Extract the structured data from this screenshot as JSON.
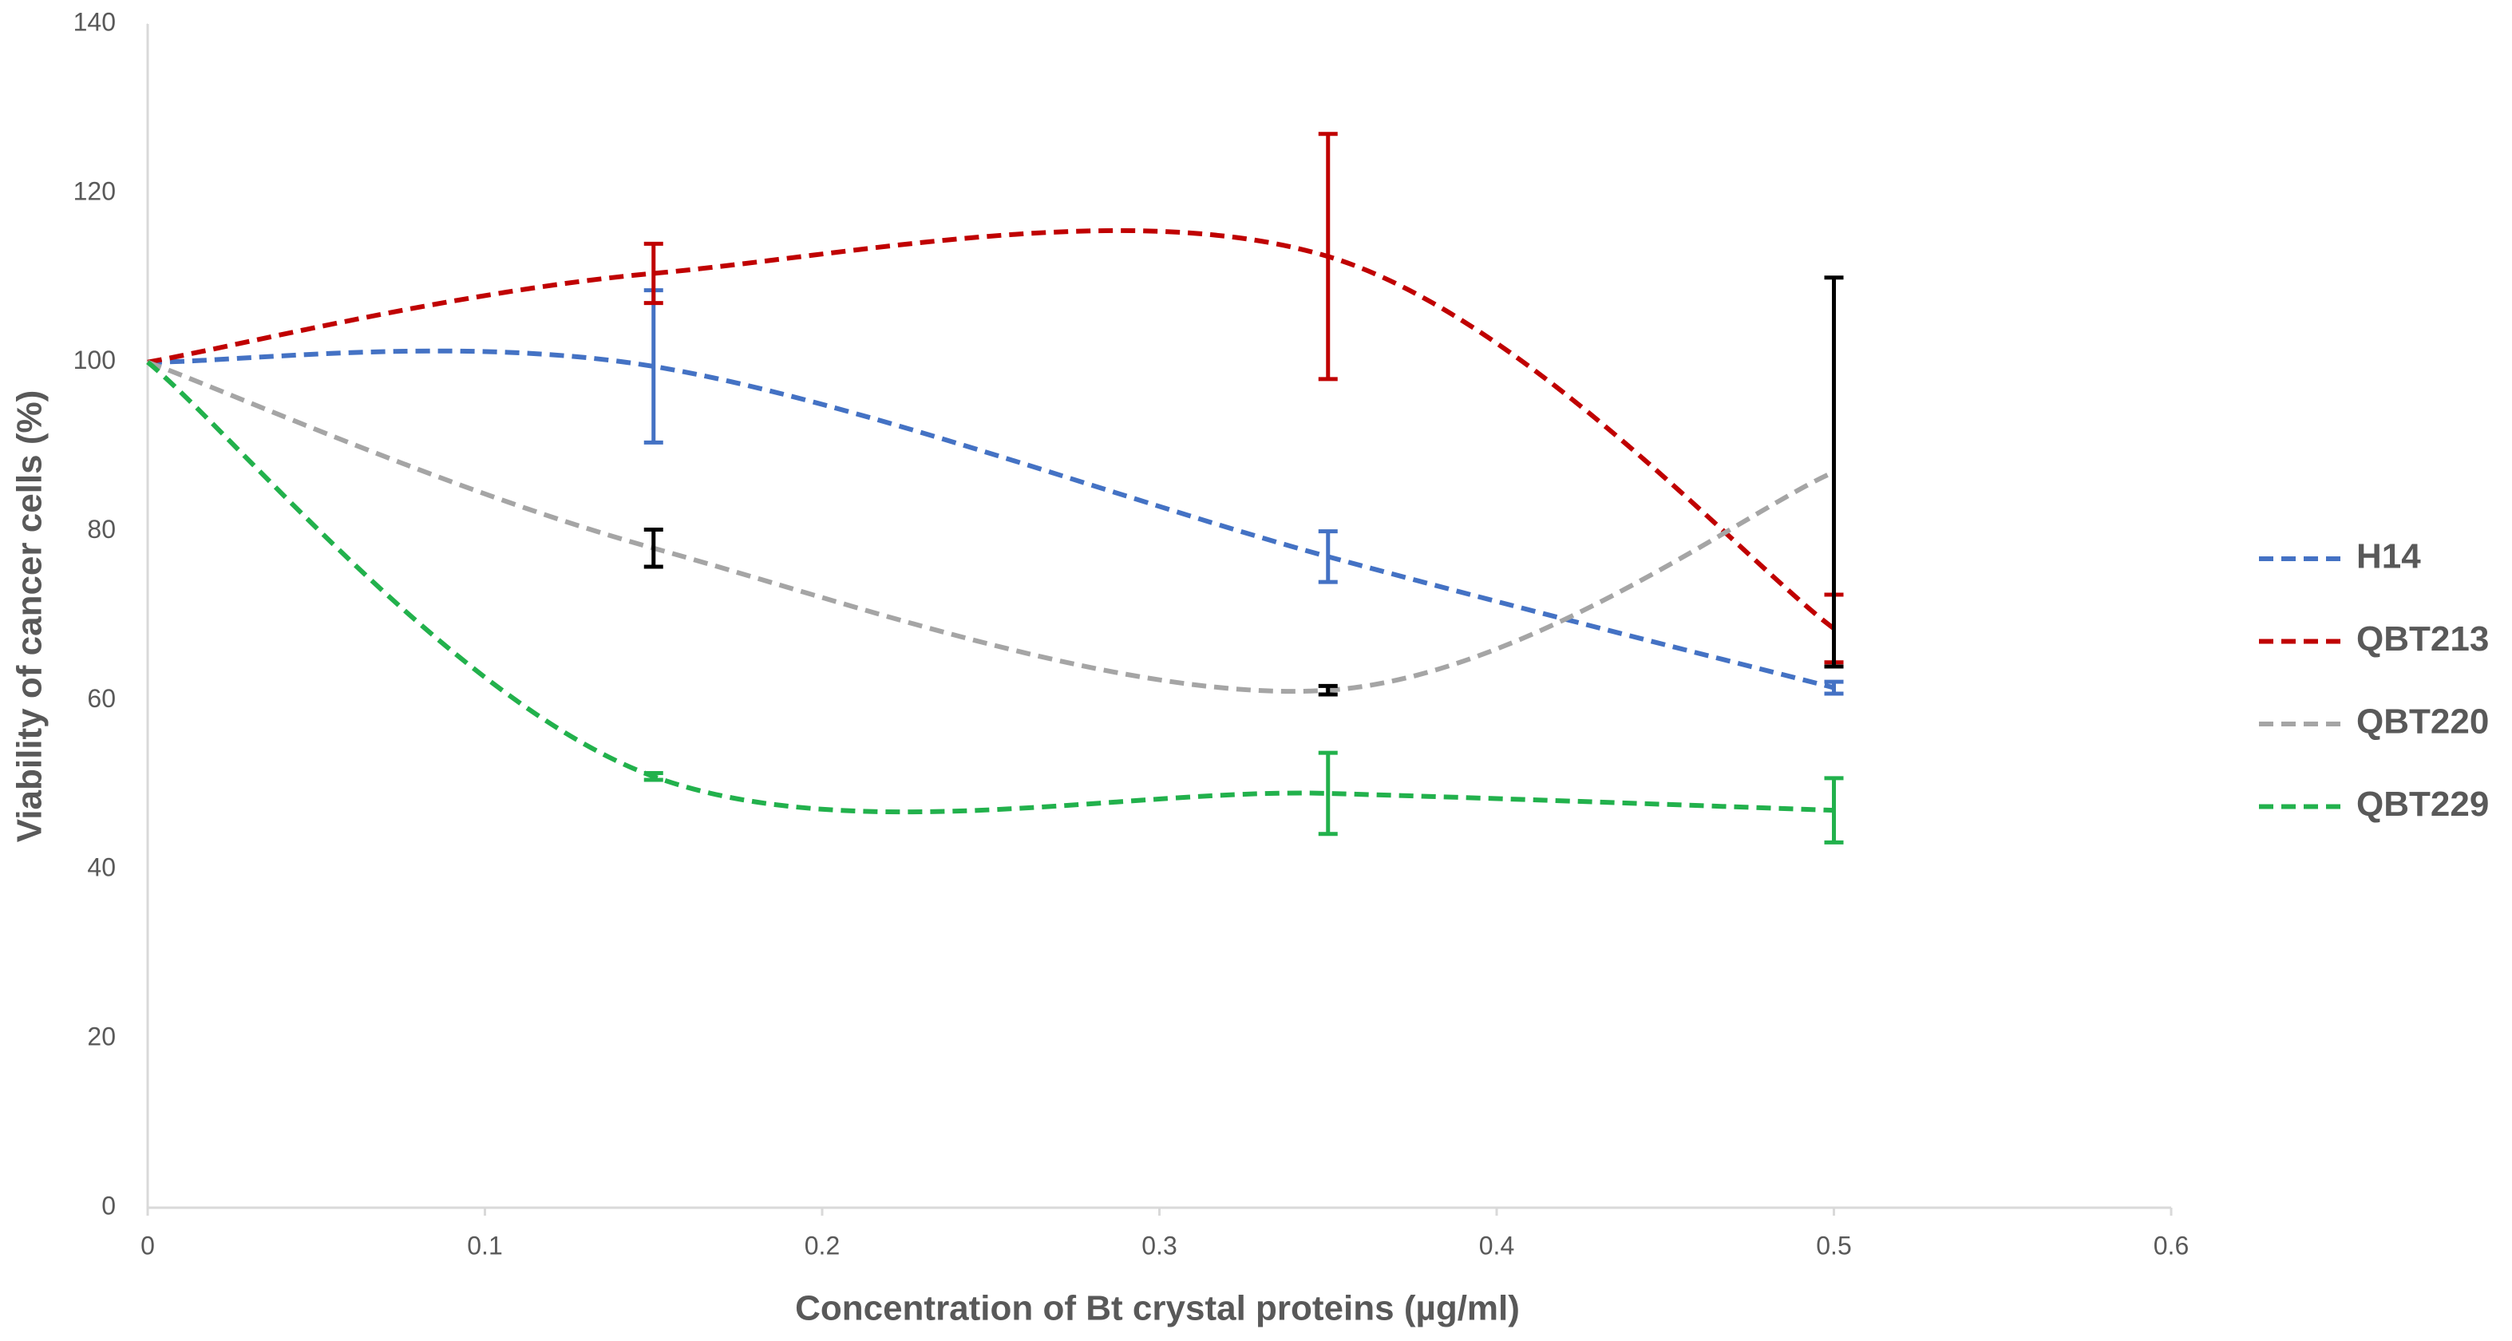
{
  "chart_data": {
    "type": "line",
    "xlabel": "Concentration of Bt crystal proteins (µg/ml)",
    "ylabel": "Viability of cancer cells (%)",
    "x": [
      0,
      0.15,
      0.35,
      0.5
    ],
    "series": [
      {
        "name": "H14",
        "color": "#4472c4",
        "error_color": "#4472c4",
        "values": [
          100,
          99.5,
          77,
          61.5
        ],
        "errors": [
          null,
          9,
          3,
          0.7
        ]
      },
      {
        "name": "QBT213",
        "color": "#c00000",
        "error_color": "#c00000",
        "values": [
          100,
          110.5,
          112.5,
          68.5
        ],
        "errors": [
          null,
          3.5,
          14.5,
          4
        ]
      },
      {
        "name": "QBT220",
        "color": "#a5a5a5",
        "error_color": "#000000",
        "values": [
          100,
          78,
          61.2,
          87
        ],
        "errors": [
          null,
          2.2,
          0.5,
          23
        ]
      },
      {
        "name": "QBT229",
        "color": "#22b14c",
        "error_color": "#22b14c",
        "values": [
          100,
          51,
          49,
          47
        ],
        "errors": [
          null,
          0.4,
          4.8,
          3.8
        ]
      }
    ],
    "xlim": [
      0,
      0.6
    ],
    "xticks": [
      0,
      0.1,
      0.2,
      0.3,
      0.4,
      0.5,
      0.6
    ],
    "ylim": [
      0,
      140
    ],
    "yticks": [
      0,
      20,
      40,
      60,
      80,
      100,
      120,
      140
    ],
    "grid": false,
    "legend": "right"
  }
}
